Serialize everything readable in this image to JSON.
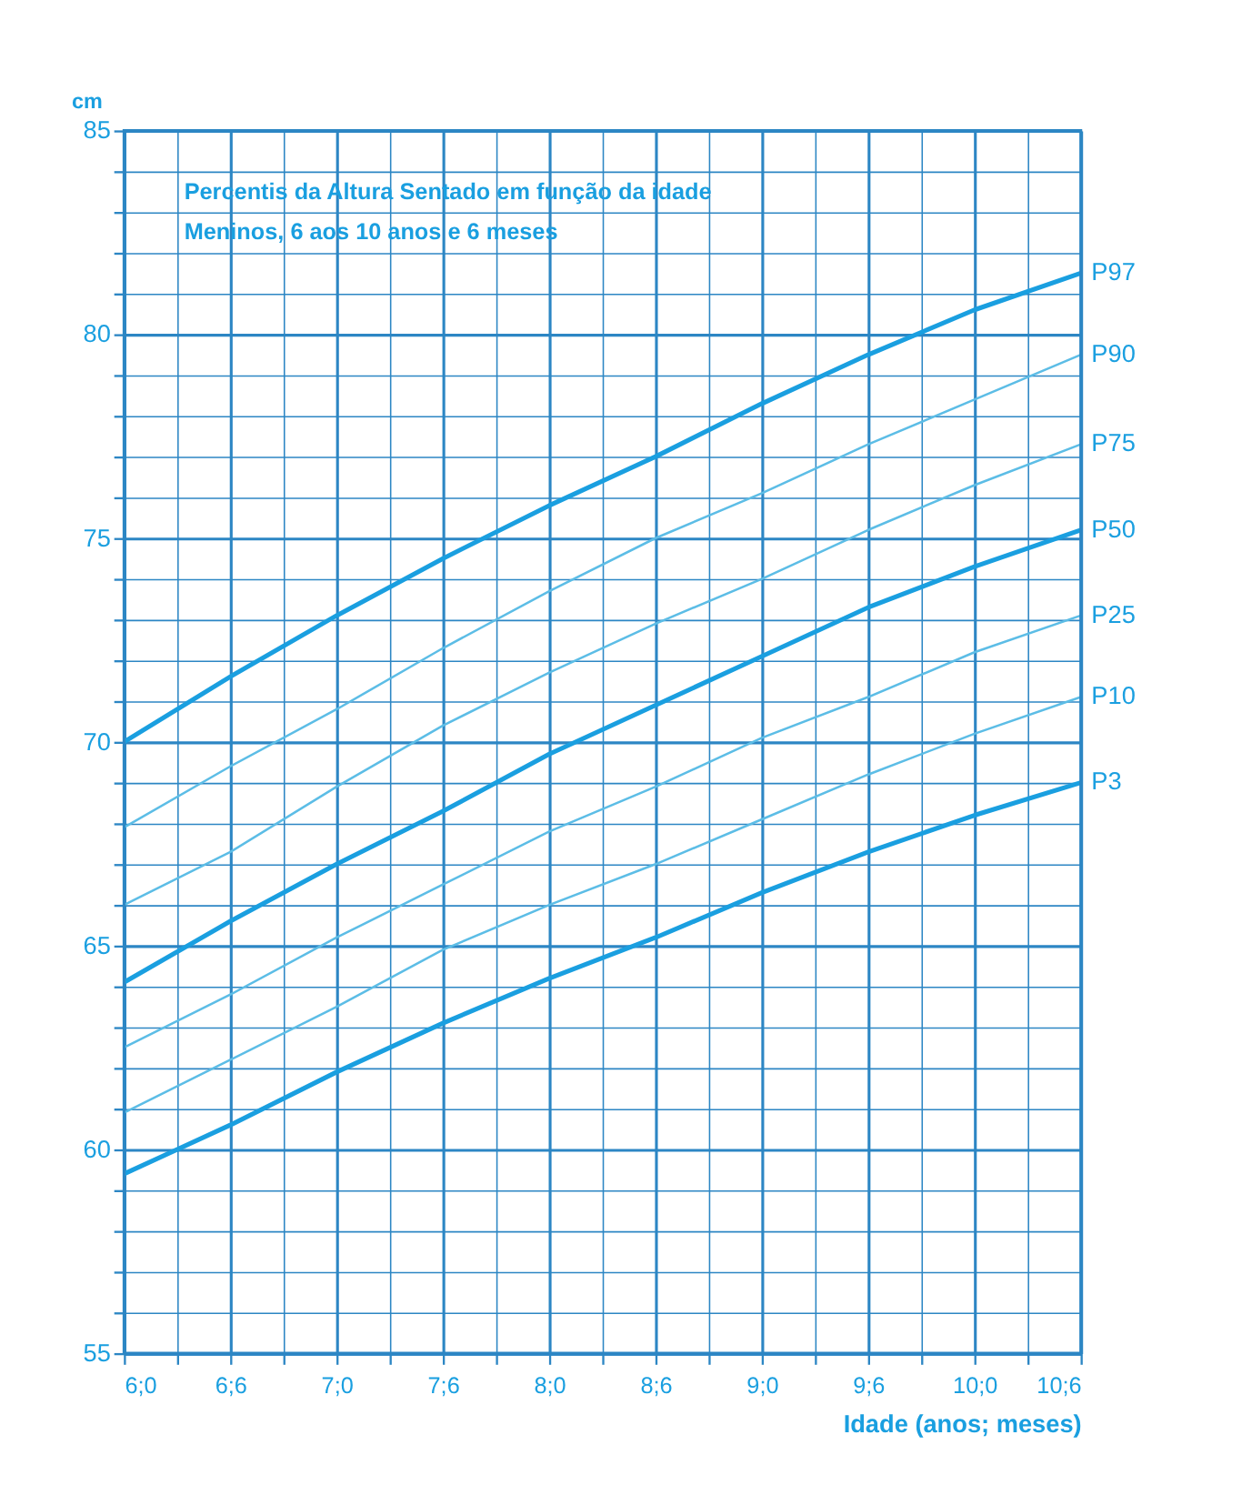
{
  "chart_data": {
    "type": "line",
    "title": "Percentis da Altura Sentado em função da idade",
    "subtitle": "Meninos, 6 aos 10 anos e 6 meses",
    "xlabel": "Idade (anos; meses)",
    "ylabel": "cm",
    "categories": [
      "6;0",
      "6;6",
      "7;0",
      "7;6",
      "8;0",
      "8;6",
      "9;0",
      "9;6",
      "10;0",
      "10;6"
    ],
    "series": [
      {
        "name": "P97",
        "color": "#1a9fe0",
        "values": [
          70.0,
          71.6,
          73.1,
          74.5,
          75.8,
          77.0,
          78.3,
          79.5,
          80.6,
          81.5
        ]
      },
      {
        "name": "P90",
        "color": "#5cbde6",
        "values": [
          67.9,
          69.4,
          70.8,
          72.3,
          73.7,
          75.0,
          76.1,
          77.3,
          78.4,
          79.5
        ]
      },
      {
        "name": "P75",
        "color": "#5cbde6",
        "values": [
          66.0,
          67.3,
          68.9,
          70.4,
          71.7,
          72.9,
          74.0,
          75.2,
          76.3,
          77.3
        ]
      },
      {
        "name": "P50",
        "color": "#1a9fe0",
        "values": [
          64.1,
          65.6,
          67.0,
          68.3,
          69.7,
          70.9,
          72.1,
          73.3,
          74.3,
          75.2
        ]
      },
      {
        "name": "P25",
        "color": "#5cbde6",
        "values": [
          62.5,
          63.8,
          65.2,
          66.5,
          67.8,
          68.9,
          70.1,
          71.1,
          72.2,
          73.1
        ]
      },
      {
        "name": "P10",
        "color": "#5cbde6",
        "values": [
          60.9,
          62.2,
          63.5,
          64.9,
          66.0,
          67.0,
          68.1,
          69.2,
          70.2,
          71.1
        ]
      },
      {
        "name": "P3",
        "color": "#1a9fe0",
        "values": [
          59.4,
          60.6,
          61.9,
          63.1,
          64.2,
          65.2,
          66.3,
          67.3,
          68.2,
          69.0
        ]
      }
    ],
    "ylim": [
      55,
      85
    ],
    "yticks": [
      55,
      {
        "value": 56,
        "label": null
      },
      {
        "value": 57,
        "label": null
      },
      {
        "value": 58,
        "label": null
      },
      {
        "value": 59,
        "label": null
      },
      60,
      {
        "value": 61,
        "label": null
      },
      {
        "value": 62,
        "label": null
      },
      {
        "value": 63,
        "label": null
      },
      {
        "value": 64,
        "label": null
      },
      65,
      {
        "value": 66,
        "label": null
      },
      {
        "value": 67,
        "label": null
      },
      {
        "value": 68,
        "label": null
      },
      {
        "value": 69,
        "label": null
      },
      70,
      {
        "value": 71,
        "label": null
      },
      {
        "value": 72,
        "label": null
      },
      {
        "value": 73,
        "label": null
      },
      {
        "value": 74,
        "label": null
      },
      75,
      {
        "value": 76,
        "label": null
      },
      {
        "value": 77,
        "label": null
      },
      {
        "value": 78,
        "label": null
      },
      {
        "value": 79,
        "label": null
      },
      80,
      {
        "value": 81,
        "label": null
      },
      {
        "value": 82,
        "label": null
      },
      {
        "value": 83,
        "label": null
      },
      {
        "value": 84,
        "label": null
      },
      85
    ],
    "grid": true,
    "legend": false,
    "marker": "none",
    "line_style": "solid"
  }
}
